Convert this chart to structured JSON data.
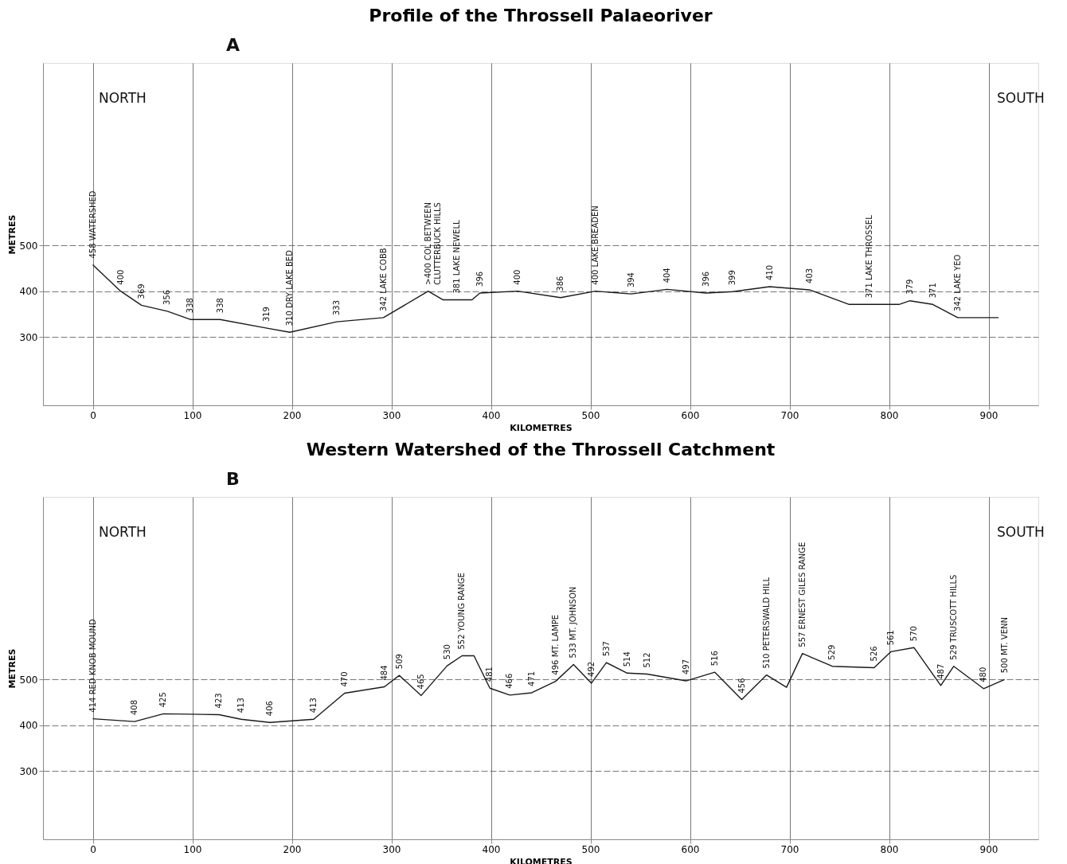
{
  "chart_data": [
    {
      "type": "line",
      "title": "Profile of the Throssell Palaeoriver",
      "xlabel": "KILOMETRES",
      "ylabel": "METRES",
      "x": [
        0,
        28,
        49,
        75,
        98,
        128,
        175,
        198,
        245,
        292,
        337,
        352,
        366,
        381,
        389,
        427,
        470,
        505,
        541,
        577,
        616,
        643,
        680,
        720,
        760,
        780,
        810,
        821,
        844,
        869,
        910
      ],
      "series": [
        {
          "color": "#1a1a1a",
          "values": [
            458,
            400,
            369,
            356,
            338,
            338,
            319,
            310,
            333,
            342,
            400,
            381,
            381,
            381,
            396,
            400,
            386,
            400,
            394,
            404,
            396,
            399,
            410,
            403,
            371,
            371,
            371,
            379,
            371,
            342,
            342
          ],
          "value_labels": [
            "458 WATERSHED",
            "400",
            "369",
            "356",
            "338",
            "338",
            "319",
            "310 DRY LAKE BED",
            "333",
            "342 LAKE COBB",
            ">400 COL BETWEEN\nCLUTTERBUCK HILLS",
            null,
            "381 LAKE NEWELL",
            null,
            "396",
            "400",
            "386",
            "400 LAKE BREADEN",
            "394",
            "404",
            "396",
            "399",
            "410",
            "403",
            null,
            "371 LAKE THROSSEL",
            null,
            "379",
            "371",
            "342 LAKE YEO",
            null
          ]
        }
      ],
      "xlim": [
        -50,
        950
      ],
      "xticks": [
        0,
        100,
        200,
        300,
        400,
        500,
        600,
        700,
        800,
        900
      ],
      "ylim": [
        150,
        900
      ],
      "yticks": [
        300,
        400,
        500
      ],
      "grid": true,
      "marker": "none",
      "line_style": "solid",
      "annotations": [
        "A",
        "NORTH",
        "SOUTH"
      ]
    },
    {
      "type": "line",
      "title": "Western Watershed of the Throssell Catchment",
      "xlabel": "KILOMETRES",
      "ylabel": "METRES",
      "x": [
        0,
        42,
        71,
        127,
        149,
        178,
        222,
        253,
        293,
        308,
        330,
        356,
        371,
        383,
        399,
        419,
        441,
        465,
        483,
        501,
        516,
        537,
        557,
        596,
        625,
        652,
        677,
        697,
        713,
        743,
        785,
        802,
        825,
        852,
        865,
        895,
        916
      ],
      "series": [
        {
          "color": "#1a1a1a",
          "values": [
            414,
            408,
            425,
            423,
            413,
            406,
            413,
            470,
            484,
            509,
            465,
            530,
            552,
            552,
            481,
            466,
            471,
            496,
            533,
            492,
            537,
            514,
            512,
            497,
            516,
            456,
            510,
            483,
            557,
            529,
            526,
            561,
            570,
            487,
            529,
            480,
            500
          ],
          "value_labels": [
            "414 RED KNOB MOUND",
            "408",
            "425",
            "423",
            "413",
            "406",
            "413",
            "470",
            "484",
            "509",
            "465",
            "530",
            "552 YOUNG RANGE",
            null,
            "481",
            "466",
            "471",
            "496 MT. LAMPE",
            "533 MT. JOHNSON",
            "492",
            "537",
            "514",
            "512",
            "497",
            "516",
            "456",
            "510 PETERSWALD HILL",
            null,
            "557 ERNEST GILES RANGE",
            "529",
            "526",
            "561",
            "570",
            "487",
            "529 TRUSCOTT HILLS",
            "480",
            "500 MT. VENN"
          ]
        }
      ],
      "xlim": [
        -50,
        950
      ],
      "xticks": [
        0,
        100,
        200,
        300,
        400,
        500,
        600,
        700,
        800,
        900
      ],
      "ylim": [
        150,
        900
      ],
      "yticks": [
        300,
        400,
        500
      ],
      "grid": true,
      "marker": "none",
      "line_style": "solid",
      "annotations": [
        "B",
        "NORTH",
        "SOUTH"
      ]
    }
  ]
}
